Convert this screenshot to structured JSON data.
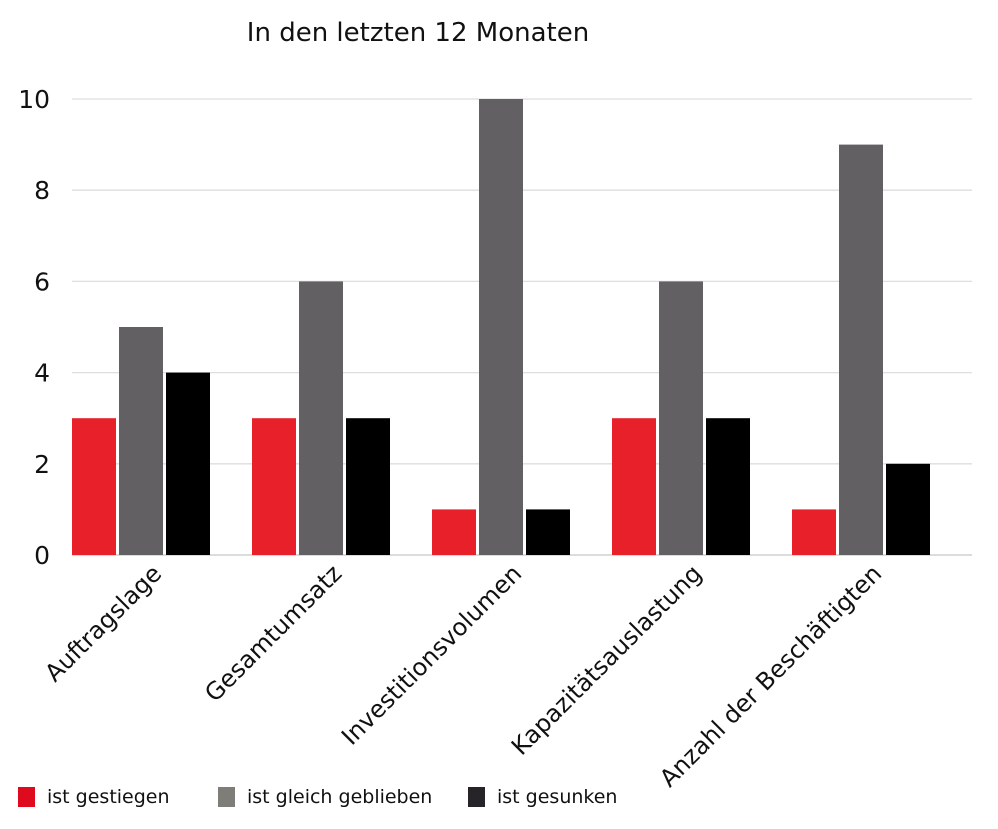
{
  "chart_data": {
    "type": "bar",
    "title": "In den letzten 12 Monaten",
    "categories": [
      "Auftragslage",
      "Gesamtumsatz",
      "Investitionsvolumen",
      "Kapazitätsauslastung",
      "Anzahl der Beschäftigten"
    ],
    "series": [
      {
        "name": "ist gestiegen",
        "values": [
          3,
          3,
          1,
          3,
          1
        ],
        "color": "#e8202a",
        "legend_color": "#e00a1e"
      },
      {
        "name": "ist gleich geblieben",
        "values": [
          5,
          6,
          10,
          6,
          9
        ],
        "color": "#626063",
        "legend_color": "#7f7d77"
      },
      {
        "name": "ist gesunken",
        "values": [
          4,
          3,
          1,
          3,
          2
        ],
        "color": "#000000",
        "legend_color": "#262428"
      }
    ],
    "ylim": [
      0,
      10
    ],
    "yticks": [
      0,
      2,
      4,
      6,
      8,
      10
    ],
    "grid": true,
    "legend_position": "bottom-left",
    "xlabel": "",
    "ylabel": ""
  }
}
